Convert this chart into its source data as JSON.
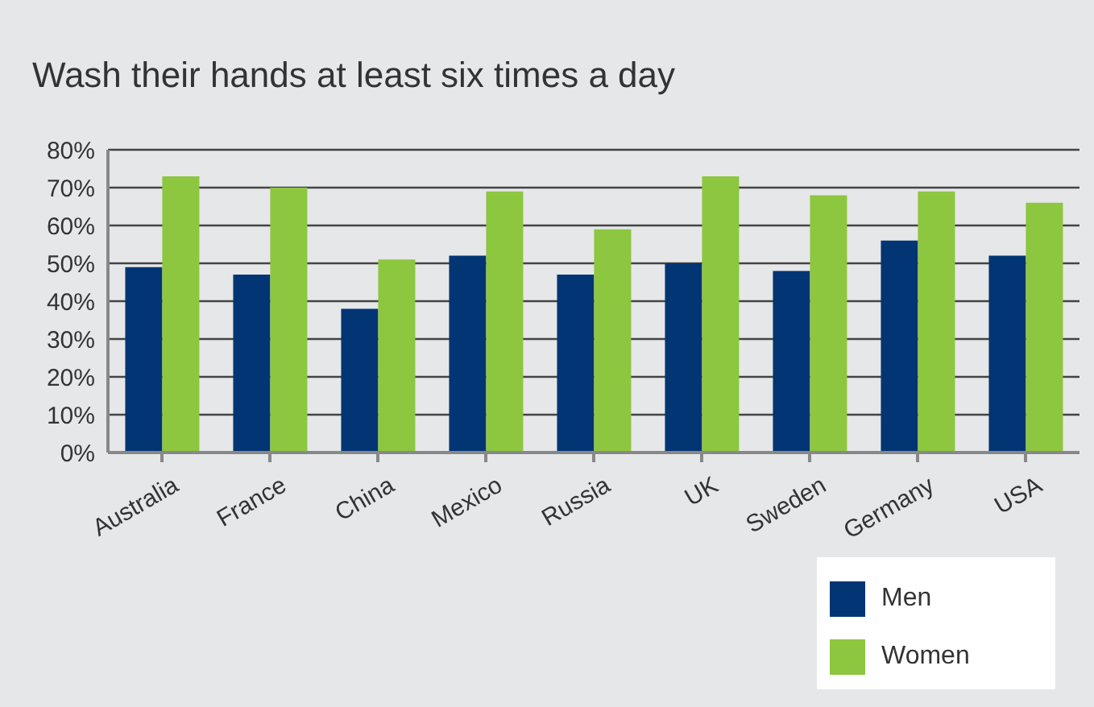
{
  "chart_data": {
    "type": "bar",
    "title": "Wash their hands at least six times a day",
    "categories": [
      "Australia",
      "France",
      "China",
      "Mexico",
      "Russia",
      "UK",
      "Sweden",
      "Germany",
      "USA"
    ],
    "series": [
      {
        "name": "Men",
        "color": "#023574",
        "values": [
          49,
          47,
          38,
          52,
          47,
          50,
          48,
          56,
          52
        ]
      },
      {
        "name": "Women",
        "color": "#8dc63f",
        "values": [
          73,
          70,
          51,
          69,
          59,
          73,
          68,
          69,
          66
        ]
      }
    ],
    "ylim": [
      0,
      80
    ],
    "yticks": [
      {
        "value": 0,
        "label": "0%"
      },
      {
        "value": 10,
        "label": "10%"
      },
      {
        "value": 20,
        "label": "20%"
      },
      {
        "value": 30,
        "label": "30%"
      },
      {
        "value": 40,
        "label": "40%"
      },
      {
        "value": 50,
        "label": "50%"
      },
      {
        "value": 60,
        "label": "60%"
      },
      {
        "value": 70,
        "label": "70%"
      },
      {
        "value": 80,
        "label": "80%"
      }
    ],
    "grid": "y",
    "legend": "bottom right"
  }
}
